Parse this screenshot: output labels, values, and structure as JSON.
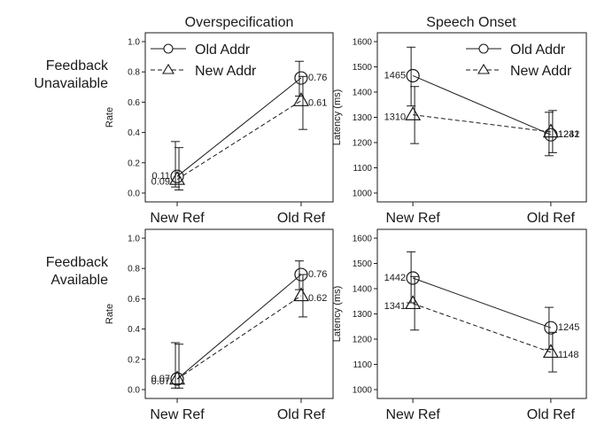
{
  "columns": [
    "Overspecification",
    "Speech Onset"
  ],
  "rows": [
    "Feedback\nUnavailable",
    "Feedback\nAvailable"
  ],
  "chart_data": [
    {
      "type": "line",
      "title": "Overspecification",
      "row": "Feedback Unavailable",
      "ylabel": "Rate",
      "xlabel": "",
      "categories": [
        "New Ref",
        "Old Ref"
      ],
      "ylim": [
        0,
        1.0
      ],
      "yticks": [
        "0.0",
        "0.2",
        "0.4",
        "0.6",
        "0.8",
        "1.0"
      ],
      "grid": false,
      "legend": "top-left",
      "series": [
        {
          "name": "Old Addr",
          "marker": "circle",
          "dash": "solid",
          "values": [
            0.11,
            0.76
          ],
          "labels": [
            "0.11",
            "0.76"
          ],
          "err_low": [
            0.04,
            0.64
          ],
          "err_high": [
            0.34,
            0.87
          ]
        },
        {
          "name": "New Addr",
          "marker": "triangle",
          "dash": "dashed",
          "values": [
            0.09,
            0.61
          ],
          "labels": [
            "0.09",
            "0.61"
          ],
          "err_low": [
            0.02,
            0.42
          ],
          "err_high": [
            0.3,
            0.77
          ]
        }
      ]
    },
    {
      "type": "line",
      "title": "Speech Onset",
      "row": "Feedback Unavailable",
      "ylabel": "Latency (ms)",
      "xlabel": "",
      "categories": [
        "New Ref",
        "Old Ref"
      ],
      "ylim": [
        1000,
        1600
      ],
      "yticks": [
        "1000",
        "1100",
        "1200",
        "1300",
        "1400",
        "1500",
        "1600"
      ],
      "grid": false,
      "legend": "top-right",
      "series": [
        {
          "name": "Old Addr",
          "marker": "circle",
          "dash": "solid",
          "values": [
            1465,
            1231
          ],
          "labels": [
            "1465",
            "1231"
          ],
          "err_low": [
            1345,
            1148
          ],
          "err_high": [
            1578,
            1320
          ]
        },
        {
          "name": "New Addr",
          "marker": "triangle",
          "dash": "dashed",
          "values": [
            1310,
            1242
          ],
          "labels": [
            "1310",
            "1242"
          ],
          "err_low": [
            1196,
            1160
          ],
          "err_high": [
            1422,
            1327
          ]
        }
      ]
    },
    {
      "type": "line",
      "title": "",
      "row": "Feedback Available",
      "ylabel": "Rate",
      "xlabel": "",
      "categories": [
        "New Ref",
        "Old Ref"
      ],
      "ylim": [
        0,
        1.0
      ],
      "yticks": [
        "0.0",
        "0.2",
        "0.4",
        "0.6",
        "0.8",
        "1.0"
      ],
      "grid": false,
      "legend": "none",
      "series": [
        {
          "name": "Old Addr",
          "marker": "circle",
          "dash": "solid",
          "values": [
            0.07,
            0.76
          ],
          "labels": [
            "0.07",
            "0.76"
          ],
          "err_low": [
            0.01,
            0.66
          ],
          "err_high": [
            0.31,
            0.85
          ]
        },
        {
          "name": "New Addr",
          "marker": "triangle",
          "dash": "dashed",
          "values": [
            0.07,
            0.62
          ],
          "labels": [
            "0.07",
            "0.62"
          ],
          "err_low": [
            0.01,
            0.48
          ],
          "err_high": [
            0.3,
            0.76
          ]
        }
      ]
    },
    {
      "type": "line",
      "title": "",
      "row": "Feedback Available",
      "ylabel": "Latency (ms)",
      "xlabel": "",
      "categories": [
        "New Ref",
        "Old Ref"
      ],
      "ylim": [
        1000,
        1600
      ],
      "yticks": [
        "1000",
        "1100",
        "1200",
        "1300",
        "1400",
        "1500",
        "1600"
      ],
      "grid": false,
      "legend": "none",
      "series": [
        {
          "name": "Old Addr",
          "marker": "circle",
          "dash": "solid",
          "values": [
            1442,
            1245
          ],
          "labels": [
            "1442",
            "1245"
          ],
          "err_low": [
            1344,
            1160
          ],
          "err_high": [
            1546,
            1326
          ]
        },
        {
          "name": "New Addr",
          "marker": "triangle",
          "dash": "dashed",
          "values": [
            1341,
            1148
          ],
          "labels": [
            "1341",
            "1148"
          ],
          "err_low": [
            1236,
            1070
          ],
          "err_high": [
            1448,
            1227
          ]
        }
      ]
    }
  ]
}
